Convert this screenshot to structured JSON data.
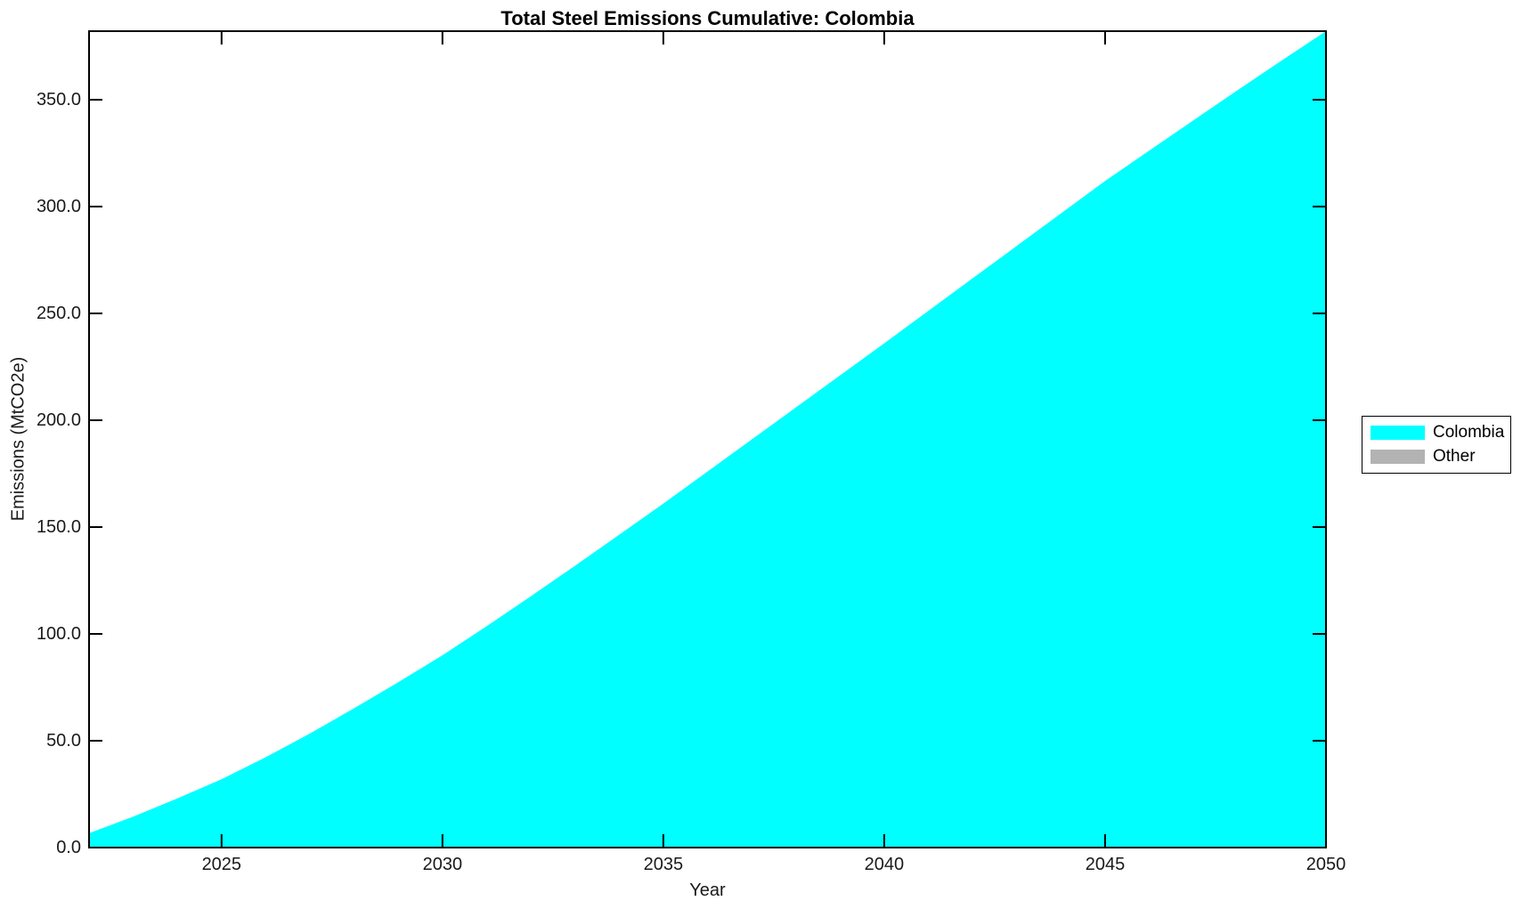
{
  "chart_data": {
    "type": "area",
    "title": "Total Steel Emissions Cumulative: Colombia",
    "xlabel": "Year",
    "ylabel": "Emissions (MtCO2e)",
    "grid": false,
    "xlim": [
      2022,
      2050
    ],
    "ylim": [
      0,
      382.1
    ],
    "x_ticks": [
      2025,
      2030,
      2035,
      2040,
      2045,
      2050
    ],
    "x_tick_labels": [
      "2025",
      "2030",
      "2035",
      "2040",
      "2045",
      "2050"
    ],
    "y_ticks": [
      0,
      50,
      100,
      150,
      200,
      250,
      300,
      350
    ],
    "y_tick_labels": [
      "0.0",
      "50.0",
      "100.0",
      "150.0",
      "200.0",
      "250.0",
      "300.0",
      "350.0"
    ],
    "legend_position": "right-outside",
    "legend": [
      {
        "label": "Colombia",
        "color": "#00FFFF"
      },
      {
        "label": "Other",
        "color": "#B3B3B3"
      }
    ],
    "series": [
      {
        "name": "Colombia",
        "color": "#00FFFF",
        "x": [
          2022,
          2023,
          2024,
          2025,
          2026,
          2027,
          2028,
          2029,
          2030,
          2031,
          2032,
          2033,
          2034,
          2035,
          2036,
          2037,
          2038,
          2039,
          2040,
          2041,
          2042,
          2043,
          2044,
          2045,
          2046,
          2047,
          2048,
          2049,
          2050
        ],
        "values": [
          6.7,
          14.5,
          23.0,
          32.0,
          42.3,
          53.4,
          65.2,
          77.4,
          90.0,
          103.6,
          117.6,
          131.9,
          146.4,
          161.0,
          176.0,
          191.0,
          206.0,
          221.0,
          236.0,
          251.2,
          266.4,
          281.6,
          296.8,
          312.0,
          326.2,
          340.4,
          354.5,
          368.4,
          382.1
        ]
      }
    ]
  }
}
